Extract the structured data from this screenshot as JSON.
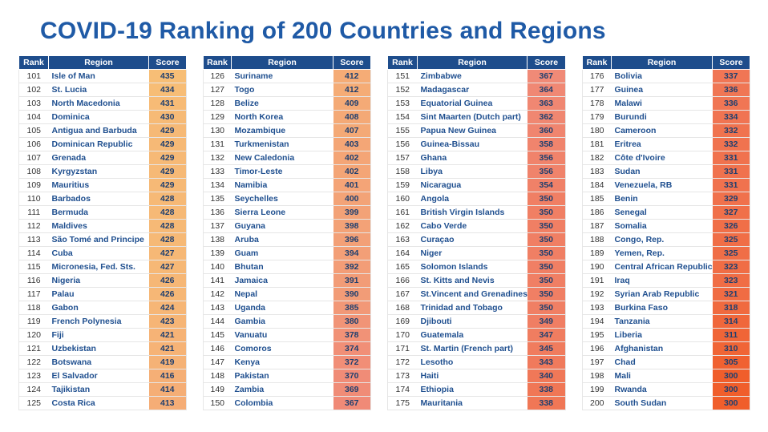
{
  "title": "COVID-19 Ranking of 200 Countries and Regions",
  "headers": {
    "rank": "Rank",
    "region": "Region",
    "score": "Score"
  },
  "columns": [
    {
      "rows": [
        {
          "rank": "101",
          "region": "Isle of Man",
          "score": "435"
        },
        {
          "rank": "102",
          "region": "St. Lucia",
          "score": "434"
        },
        {
          "rank": "103",
          "region": "North Macedonia",
          "score": "431"
        },
        {
          "rank": "104",
          "region": "Dominica",
          "score": "430"
        },
        {
          "rank": "105",
          "region": "Antigua and Barbuda",
          "score": "429"
        },
        {
          "rank": "106",
          "region": "Dominican Republic",
          "score": "429"
        },
        {
          "rank": "107",
          "region": "Grenada",
          "score": "429"
        },
        {
          "rank": "108",
          "region": "Kyrgyzstan",
          "score": "429"
        },
        {
          "rank": "109",
          "region": "Mauritius",
          "score": "429"
        },
        {
          "rank": "110",
          "region": "Barbados",
          "score": "428"
        },
        {
          "rank": "111",
          "region": "Bermuda",
          "score": "428"
        },
        {
          "rank": "112",
          "region": "Maldives",
          "score": "428"
        },
        {
          "rank": "113",
          "region": "São Tomé and Principe",
          "score": "428"
        },
        {
          "rank": "114",
          "region": "Cuba",
          "score": "427"
        },
        {
          "rank": "115",
          "region": "Micronesia, Fed. Sts.",
          "score": "427"
        },
        {
          "rank": "116",
          "region": "Nigeria",
          "score": "426"
        },
        {
          "rank": "117",
          "region": "Palau",
          "score": "426"
        },
        {
          "rank": "118",
          "region": "Gabon",
          "score": "424"
        },
        {
          "rank": "119",
          "region": "French Polynesia",
          "score": "423"
        },
        {
          "rank": "120",
          "region": "Fiji",
          "score": "421"
        },
        {
          "rank": "121",
          "region": "Uzbekistan",
          "score": "421"
        },
        {
          "rank": "122",
          "region": "Botswana",
          "score": "419"
        },
        {
          "rank": "123",
          "region": "El Salvador",
          "score": "416"
        },
        {
          "rank": "124",
          "region": "Tajikistan",
          "score": "414"
        },
        {
          "rank": "125",
          "region": "Costa Rica",
          "score": "413"
        }
      ]
    },
    {
      "rows": [
        {
          "rank": "126",
          "region": "Suriname",
          "score": "412"
        },
        {
          "rank": "127",
          "region": "Togo",
          "score": "412"
        },
        {
          "rank": "128",
          "region": "Belize",
          "score": "409"
        },
        {
          "rank": "129",
          "region": "North Korea",
          "score": "408"
        },
        {
          "rank": "130",
          "region": "Mozambique",
          "score": "407"
        },
        {
          "rank": "131",
          "region": "Turkmenistan",
          "score": "403"
        },
        {
          "rank": "132",
          "region": "New Caledonia",
          "score": "402"
        },
        {
          "rank": "133",
          "region": "Timor-Leste",
          "score": "402"
        },
        {
          "rank": "134",
          "region": "Namibia",
          "score": "401"
        },
        {
          "rank": "135",
          "region": "Seychelles",
          "score": "400"
        },
        {
          "rank": "136",
          "region": "Sierra Leone",
          "score": "399"
        },
        {
          "rank": "137",
          "region": "Guyana",
          "score": "398"
        },
        {
          "rank": "138",
          "region": "Aruba",
          "score": "396"
        },
        {
          "rank": "139",
          "region": "Guam",
          "score": "394"
        },
        {
          "rank": "140",
          "region": "Bhutan",
          "score": "392"
        },
        {
          "rank": "141",
          "region": "Jamaica",
          "score": "391"
        },
        {
          "rank": "142",
          "region": "Nepal",
          "score": "390"
        },
        {
          "rank": "143",
          "region": "Uganda",
          "score": "385"
        },
        {
          "rank": "144",
          "region": "Gambia",
          "score": "380"
        },
        {
          "rank": "145",
          "region": "Vanuatu",
          "score": "378"
        },
        {
          "rank": "146",
          "region": "Comoros",
          "score": "374"
        },
        {
          "rank": "147",
          "region": "Kenya",
          "score": "372"
        },
        {
          "rank": "148",
          "region": "Pakistan",
          "score": "370"
        },
        {
          "rank": "149",
          "region": "Zambia",
          "score": "369"
        },
        {
          "rank": "150",
          "region": "Colombia",
          "score": "367"
        }
      ]
    },
    {
      "rows": [
        {
          "rank": "151",
          "region": "Zimbabwe",
          "score": "367"
        },
        {
          "rank": "152",
          "region": "Madagascar",
          "score": "364"
        },
        {
          "rank": "153",
          "region": "Equatorial Guinea",
          "score": "363"
        },
        {
          "rank": "154",
          "region": "Sint Maarten (Dutch part)",
          "score": "362"
        },
        {
          "rank": "155",
          "region": "Papua New Guinea",
          "score": "360"
        },
        {
          "rank": "156",
          "region": "Guinea-Bissau",
          "score": "358"
        },
        {
          "rank": "157",
          "region": "Ghana",
          "score": "356"
        },
        {
          "rank": "158",
          "region": "Libya",
          "score": "356"
        },
        {
          "rank": "159",
          "region": "Nicaragua",
          "score": "354"
        },
        {
          "rank": "160",
          "region": "Angola",
          "score": "350"
        },
        {
          "rank": "161",
          "region": "British Virgin Islands",
          "score": "350"
        },
        {
          "rank": "162",
          "region": "Cabo Verde",
          "score": "350"
        },
        {
          "rank": "163",
          "region": "Curaçao",
          "score": "350"
        },
        {
          "rank": "164",
          "region": "Niger",
          "score": "350"
        },
        {
          "rank": "165",
          "region": "Solomon Islands",
          "score": "350"
        },
        {
          "rank": "166",
          "region": "St. Kitts and Nevis",
          "score": "350"
        },
        {
          "rank": "167",
          "region": "St.Vincent and Grenadines",
          "score": "350"
        },
        {
          "rank": "168",
          "region": "Trinidad and Tobago",
          "score": "350"
        },
        {
          "rank": "169",
          "region": "Djibouti",
          "score": "349"
        },
        {
          "rank": "170",
          "region": "Guatemala",
          "score": "347"
        },
        {
          "rank": "171",
          "region": "St. Martin (French part)",
          "score": "345"
        },
        {
          "rank": "172",
          "region": "Lesotho",
          "score": "343"
        },
        {
          "rank": "173",
          "region": "Haiti",
          "score": "340"
        },
        {
          "rank": "174",
          "region": "Ethiopia",
          "score": "338"
        },
        {
          "rank": "175",
          "region": "Mauritania",
          "score": "338"
        }
      ]
    },
    {
      "rows": [
        {
          "rank": "176",
          "region": "Bolivia",
          "score": "337"
        },
        {
          "rank": "177",
          "region": "Guinea",
          "score": "336"
        },
        {
          "rank": "178",
          "region": "Malawi",
          "score": "336"
        },
        {
          "rank": "179",
          "region": "Burundi",
          "score": "334"
        },
        {
          "rank": "180",
          "region": "Cameroon",
          "score": "332"
        },
        {
          "rank": "181",
          "region": "Eritrea",
          "score": "332"
        },
        {
          "rank": "182",
          "region": "Côte d'Ivoire",
          "score": "331"
        },
        {
          "rank": "183",
          "region": "Sudan",
          "score": "331"
        },
        {
          "rank": "184",
          "region": "Venezuela, RB",
          "score": "331"
        },
        {
          "rank": "185",
          "region": "Benin",
          "score": "329"
        },
        {
          "rank": "186",
          "region": "Senegal",
          "score": "327"
        },
        {
          "rank": "187",
          "region": "Somalia",
          "score": "326"
        },
        {
          "rank": "188",
          "region": "Congo, Rep.",
          "score": "325"
        },
        {
          "rank": "189",
          "region": "Yemen, Rep.",
          "score": "325"
        },
        {
          "rank": "190",
          "region": "Central African Republic",
          "score": "323"
        },
        {
          "rank": "191",
          "region": "Iraq",
          "score": "323"
        },
        {
          "rank": "192",
          "region": "Syrian Arab Republic",
          "score": "321"
        },
        {
          "rank": "193",
          "region": "Burkina Faso",
          "score": "318"
        },
        {
          "rank": "194",
          "region": "Tanzania",
          "score": "314"
        },
        {
          "rank": "195",
          "region": "Liberia",
          "score": "311"
        },
        {
          "rank": "196",
          "region": "Afghanistan",
          "score": "310"
        },
        {
          "rank": "197",
          "region": "Chad",
          "score": "305"
        },
        {
          "rank": "198",
          "region": "Mali",
          "score": "300"
        },
        {
          "rank": "199",
          "region": "Rwanda",
          "score": "300"
        },
        {
          "rank": "200",
          "region": "South Sudan",
          "score": "300"
        }
      ]
    }
  ],
  "colors": {
    "title": "#1f5aa6",
    "header_bg": "#1e4d8c",
    "score_high": "#f7be76",
    "score_mid": "#f08a77",
    "score_low": "#f05e2b"
  },
  "score_color_scale": {
    "high": 435,
    "mid": 367,
    "low": 300
  }
}
